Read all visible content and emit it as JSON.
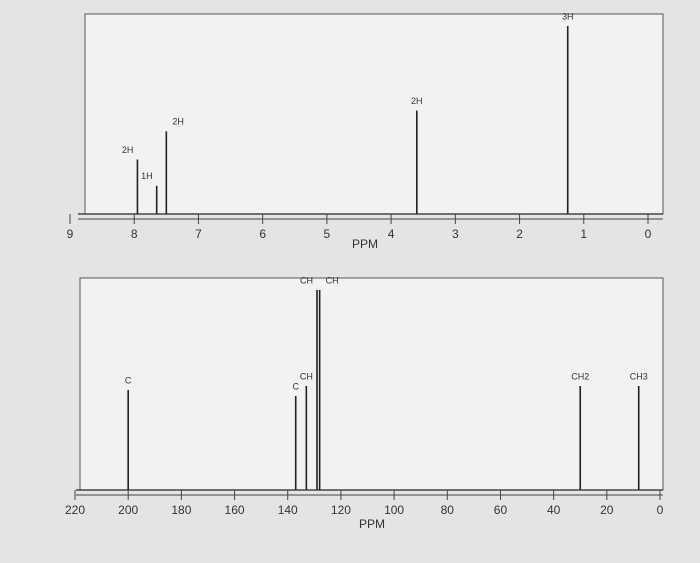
{
  "chart_data": [
    {
      "type": "spectrum",
      "xlabel": "PPM",
      "xlim": [
        9,
        0
      ],
      "xticks": [
        9,
        8,
        7,
        6,
        5,
        4,
        3,
        2,
        1,
        0
      ],
      "ylim": [
        0,
        100
      ],
      "color": "#222",
      "peaks": {
        "x": [
          7.95,
          7.65,
          7.5,
          3.6,
          1.25
        ],
        "values": [
          29,
          15,
          44,
          55,
          100
        ],
        "labels": [
          "2H",
          "1H",
          "2H",
          "2H",
          "3H"
        ]
      }
    },
    {
      "type": "spectrum",
      "xlabel": "PPM",
      "xlim": [
        220,
        0
      ],
      "xticks": [
        220,
        200,
        180,
        160,
        140,
        120,
        100,
        80,
        60,
        40,
        20,
        0
      ],
      "ylim": [
        0,
        100
      ],
      "color": "#222",
      "peaks": {
        "x": [
          200,
          137,
          133,
          129,
          128,
          30,
          8
        ],
        "values": [
          50,
          47,
          52,
          100,
          100,
          52,
          52
        ],
        "labels": [
          "C",
          "C",
          "CH",
          "CH",
          "CH",
          "CH2",
          "CH3"
        ]
      }
    }
  ]
}
